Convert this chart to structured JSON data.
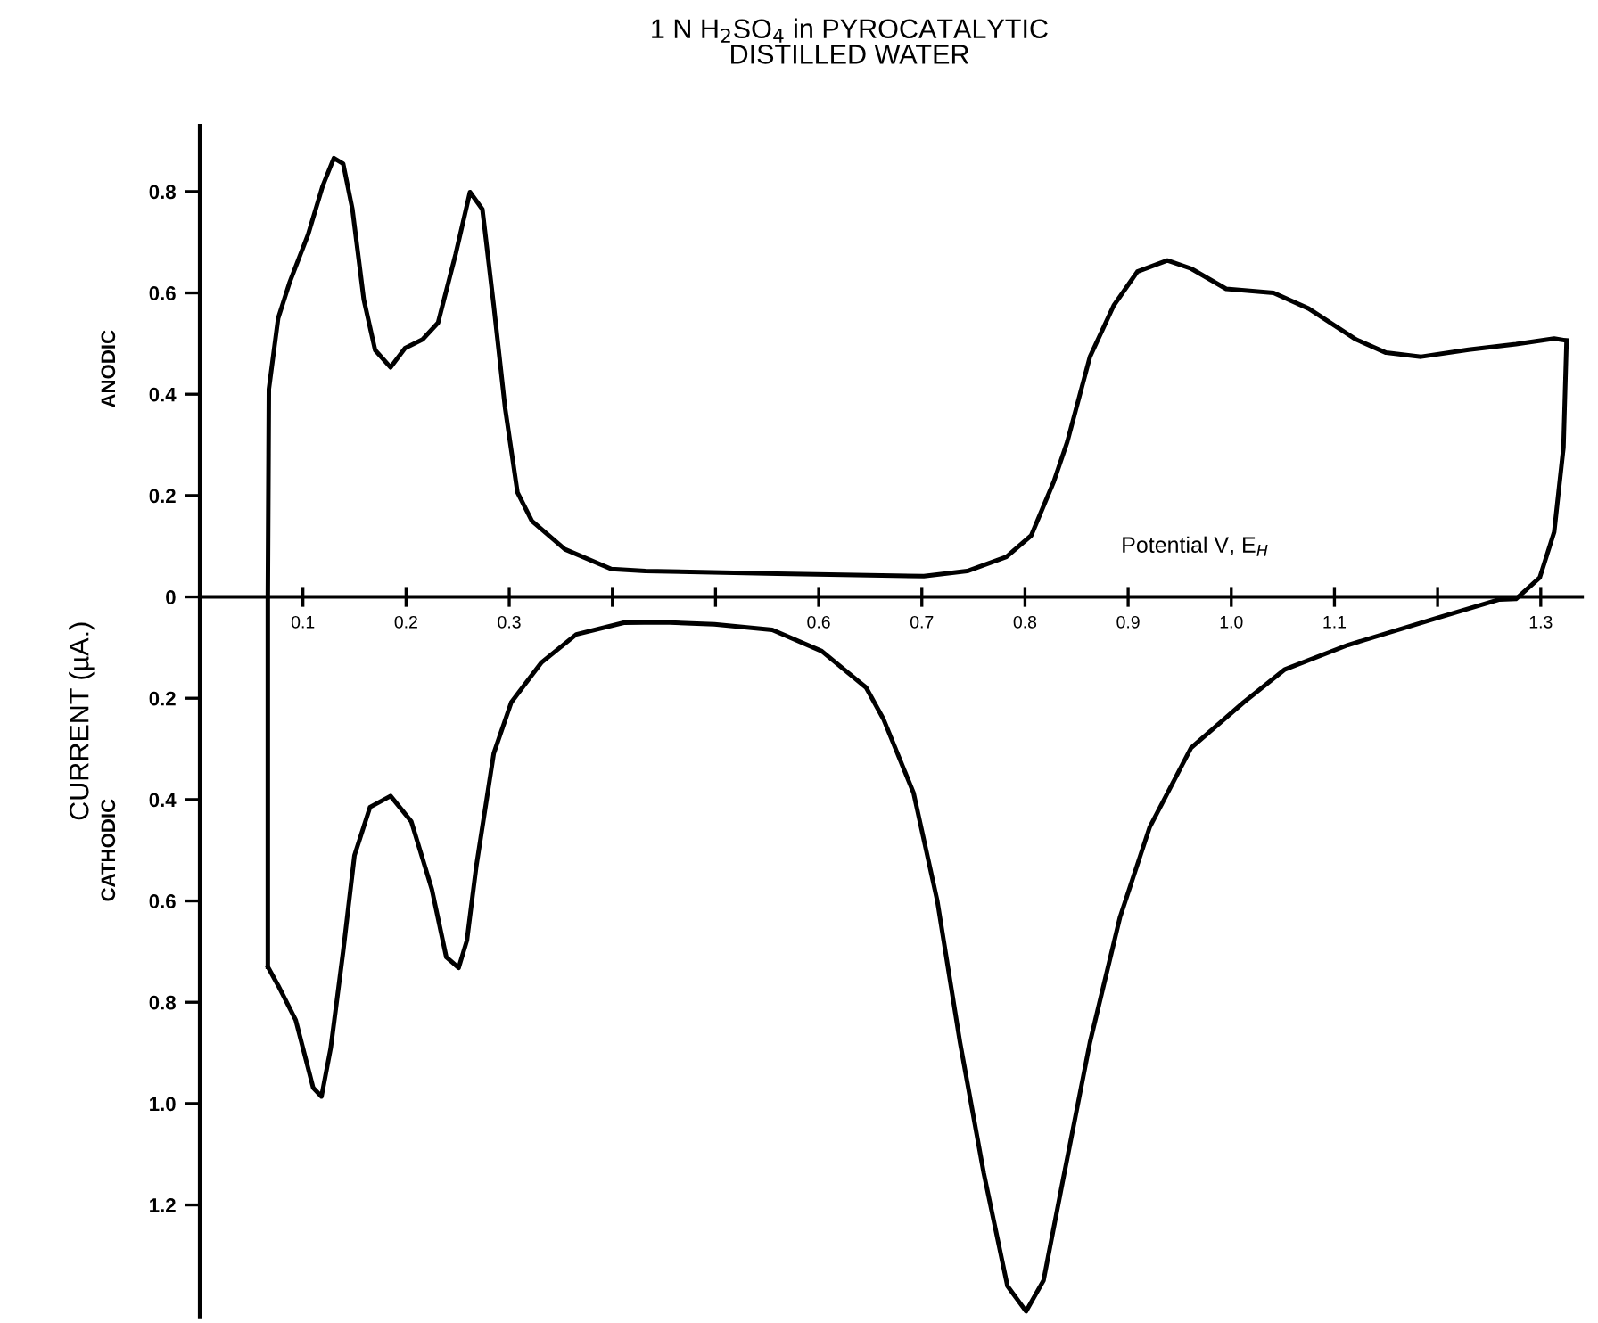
{
  "chart_data": {
    "type": "line",
    "title": "1 N H$_{2}$SO$_{4}$ in PYROCATALYTIC\nDISTILLED WATER",
    "xlabel": "Potential V, E$_{H}$",
    "ylabel": "CURRENT (µA.)",
    "annotations": [
      "ANODIC",
      "CATHODIC"
    ],
    "series": [
      {
        "color": "#000000",
        "x": [
          0.066,
          0.066,
          0.067,
          0.076,
          0.087,
          0.105,
          0.119,
          0.13,
          0.139,
          0.148,
          0.159,
          0.17,
          0.185,
          0.199,
          0.216,
          0.231,
          0.248,
          0.262,
          0.274,
          0.285,
          0.296,
          0.308,
          0.322,
          0.354,
          0.399,
          0.432,
          0.56,
          0.702,
          0.744,
          0.782,
          0.806,
          0.828,
          0.841,
          0.863,
          0.886,
          0.909,
          0.938,
          0.961,
          0.995,
          1.041,
          1.075,
          1.121,
          1.15,
          1.184,
          1.23,
          1.276,
          1.313,
          1.325
        ],
        "values": [
          -0.73,
          0,
          0.41,
          0.55,
          0.62,
          0.715,
          0.81,
          0.866,
          0.855,
          0.765,
          0.587,
          0.487,
          0.453,
          0.491,
          0.508,
          0.541,
          0.676,
          0.799,
          0.765,
          0.575,
          0.373,
          0.206,
          0.15,
          0.094,
          0.055,
          0.051,
          0.046,
          0.041,
          0.051,
          0.079,
          0.121,
          0.228,
          0.306,
          0.474,
          0.575,
          0.642,
          0.664,
          0.648,
          0.608,
          0.6,
          0.569,
          0.508,
          0.482,
          0.474,
          0.488,
          0.499,
          0.51,
          0.506
        ]
      },
      {
        "color": "#000000",
        "x": [
          0.066,
          0.076,
          0.093,
          0.11,
          0.118,
          0.127,
          0.139,
          0.15,
          0.165,
          0.185,
          0.205,
          0.225,
          0.239,
          0.251,
          0.259,
          0.268,
          0.285,
          0.302,
          0.331,
          0.365,
          0.411,
          0.45,
          0.499,
          0.555,
          0.603,
          0.646,
          0.663,
          0.692,
          0.715,
          0.737,
          0.76,
          0.783,
          0.801,
          0.818,
          0.835,
          0.863,
          0.892,
          0.921,
          0.961,
          1.012,
          1.052,
          1.113,
          1.199,
          1.26,
          1.276,
          1.299,
          1.313,
          1.322,
          1.325
        ],
        "values": [
          -0.73,
          -0.767,
          -0.835,
          -0.969,
          -0.986,
          -0.89,
          -0.7,
          -0.51,
          -0.415,
          -0.393,
          -0.443,
          -0.577,
          -0.711,
          -0.732,
          -0.678,
          -0.533,
          -0.309,
          -0.208,
          -0.13,
          -0.074,
          -0.051,
          -0.05,
          -0.054,
          -0.065,
          -0.107,
          -0.179,
          -0.242,
          -0.387,
          -0.6,
          -0.879,
          -1.137,
          -1.36,
          -1.41,
          -1.349,
          -1.17,
          -0.879,
          -0.633,
          -0.454,
          -0.298,
          -0.208,
          -0.143,
          -0.095,
          -0.042,
          -0.005,
          -0.004,
          0.038,
          0.128,
          0.295,
          0.506
        ]
      }
    ],
    "xlim": [
      0.0,
      1.34
    ],
    "ylim": [
      -1.42,
      0.93
    ],
    "xticks": [
      0.1,
      0.2,
      0.3,
      {
        "value": 0.4,
        "label": null
      },
      {
        "value": 0.5,
        "label": null
      },
      0.6,
      0.7,
      0.8,
      0.9,
      {
        "value": 1.0,
        "label": "1.0"
      },
      1.1,
      {
        "value": 1.2,
        "label": null
      },
      1.3
    ],
    "yticks": [
      0.8,
      0.6,
      0.4,
      0.2,
      0,
      {
        "value": -0.2,
        "label": "0.2"
      },
      {
        "value": -0.4,
        "label": "0.4"
      },
      {
        "value": -0.6,
        "label": "0.6"
      },
      {
        "value": -0.8,
        "label": "0.8"
      },
      {
        "value": -1.0,
        "label": "1.0"
      },
      {
        "value": -1.2,
        "label": "1.2"
      }
    ],
    "grid": false,
    "legend": false,
    "marker": "none",
    "line_style": "solid"
  }
}
